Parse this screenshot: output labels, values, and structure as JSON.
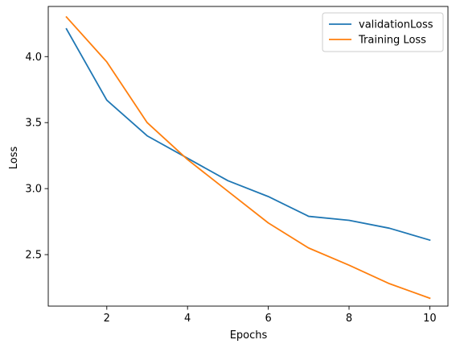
{
  "chart_data": {
    "type": "line",
    "title": "",
    "xlabel": "Epochs",
    "ylabel": "Loss",
    "x": [
      1,
      2,
      3,
      4,
      5,
      6,
      7,
      8,
      9,
      10
    ],
    "xlim": [
      0.55,
      10.45
    ],
    "ylim": [
      2.11,
      4.38
    ],
    "xticks": [
      2,
      4,
      6,
      8,
      10
    ],
    "yticks": [
      2.5,
      3.0,
      3.5,
      4.0
    ],
    "xtick_labels": [
      "2",
      "4",
      "6",
      "8",
      "10"
    ],
    "ytick_labels": [
      "2.5",
      "3.0",
      "3.5",
      "4.0"
    ],
    "grid": false,
    "legend_position": "top-right",
    "series": [
      {
        "name": "validationLoss",
        "color": "#1f77b4",
        "values": [
          4.21,
          3.67,
          3.4,
          3.23,
          3.06,
          2.94,
          2.79,
          2.76,
          2.7,
          2.61
        ]
      },
      {
        "name": "Training Loss",
        "color": "#ff7f0e",
        "values": [
          4.3,
          3.96,
          3.5,
          3.22,
          2.98,
          2.74,
          2.55,
          2.42,
          2.28,
          2.17
        ]
      }
    ]
  }
}
